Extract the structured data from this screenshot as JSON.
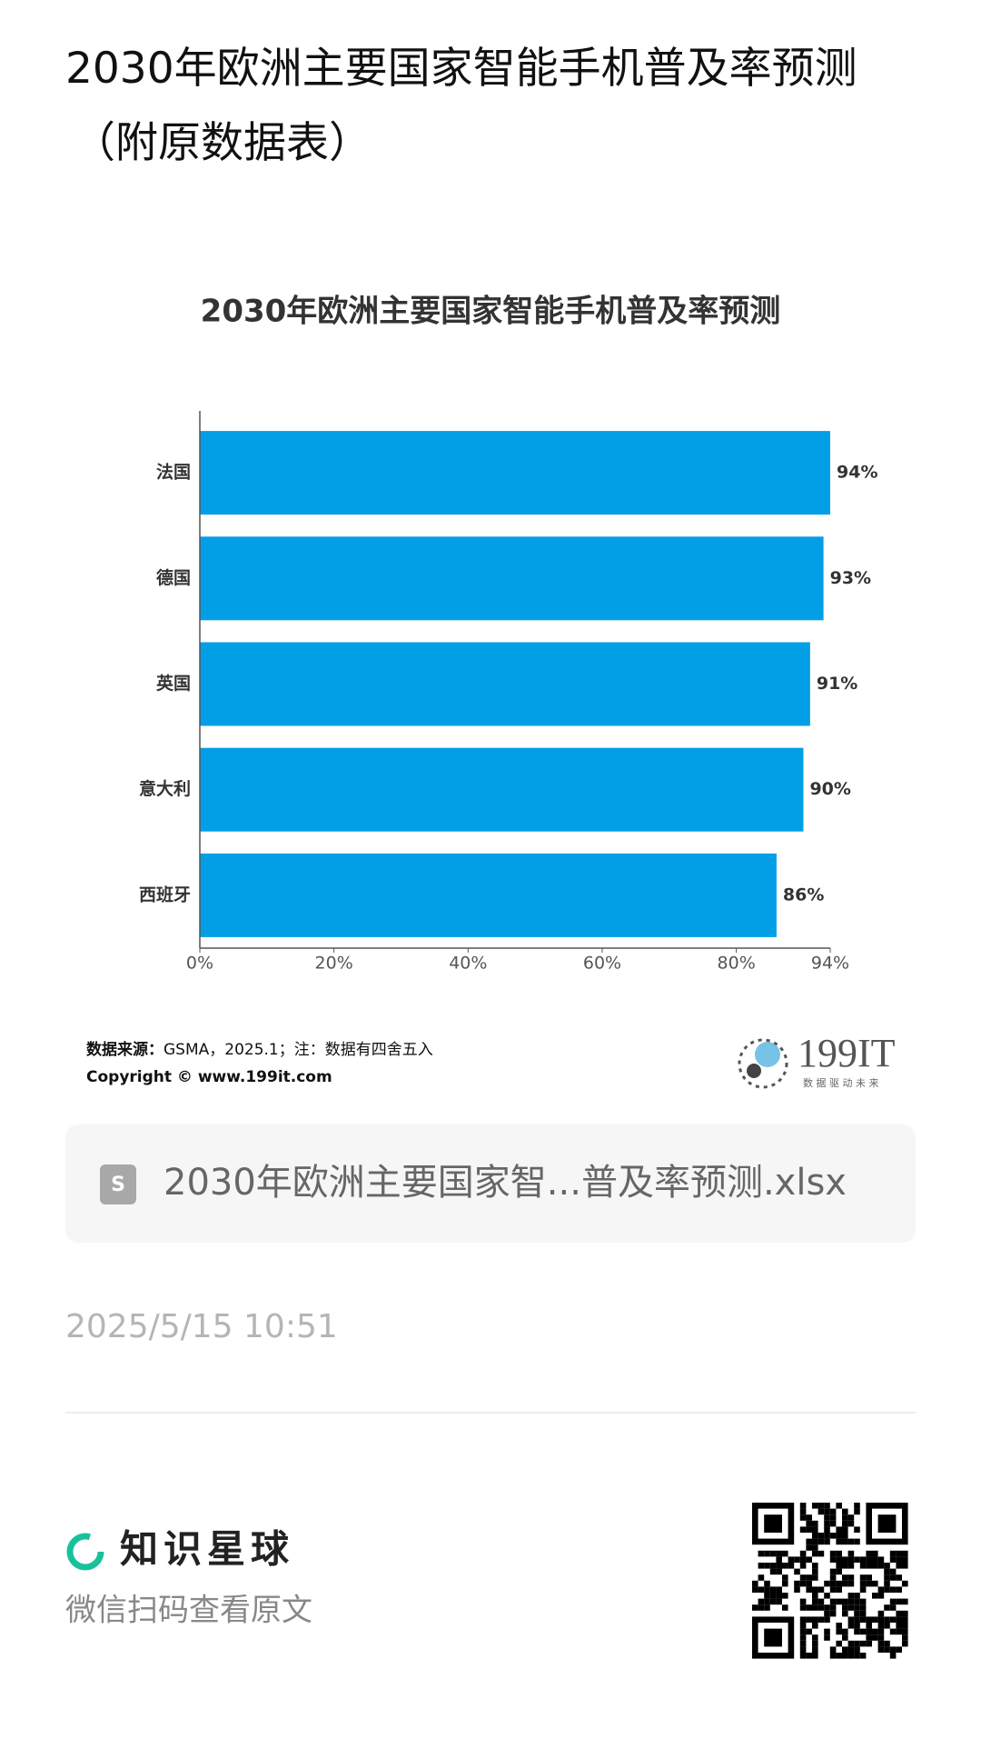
{
  "page_title": "2030年欧洲主要国家智能手机普及率预测（附原数据表）",
  "chart_data": {
    "type": "bar",
    "orientation": "horizontal",
    "title": "2030年欧洲主要国家智能手机普及率预测",
    "categories": [
      "法国",
      "德国",
      "英国",
      "意大利",
      "西班牙"
    ],
    "values": [
      94,
      93,
      91,
      90,
      86
    ],
    "value_labels": [
      "94%",
      "93%",
      "91%",
      "90%",
      "86%"
    ],
    "color": "#039fe6",
    "xlim": [
      0,
      94
    ],
    "xticks": [
      {
        "value": 0,
        "label": "0%"
      },
      {
        "value": 20,
        "label": "20%"
      },
      {
        "value": 40,
        "label": "40%"
      },
      {
        "value": 60,
        "label": "60%"
      },
      {
        "value": 80,
        "label": "80%"
      },
      {
        "value": 94,
        "label": "94%"
      }
    ]
  },
  "source": {
    "label": "数据来源：",
    "text": "GSMA，2025.1；注：数据有四舍五入",
    "copyright": "Copyright ©  www.199it.com"
  },
  "logo": {
    "name": "199IT",
    "slogan": "数 据 驱 动 未 来"
  },
  "file": {
    "name": "2030年欧洲主要国家智...普及率预测.xlsx"
  },
  "timestamp": "2025/5/15 10:51",
  "footer": {
    "brand": "知识星球",
    "hint": "微信扫码查看原文"
  }
}
